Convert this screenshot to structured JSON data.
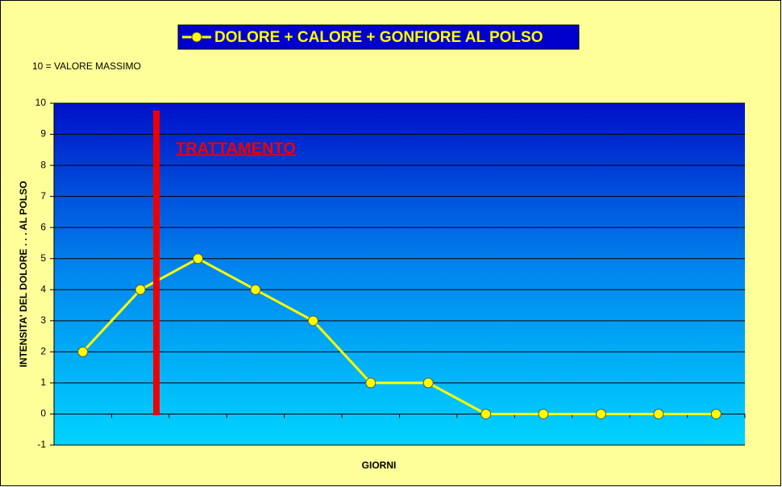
{
  "chart_data": {
    "type": "line",
    "annotations": [
      "10 = VALORE MASSIMO",
      "TRATTAMENTO"
    ],
    "x_label": "GIORNI",
    "y_label": "INTENSITA' DEL DOLORE . . . AL POLSO",
    "categories": [
      null,
      null,
      null,
      null,
      null,
      null,
      null,
      null,
      null,
      null,
      null,
      null
    ],
    "series": [
      {
        "name": "DOLORE + CALORE + GONFIORE AL POLSO",
        "color": "#ffff00",
        "values": [
          2,
          4,
          5,
          4,
          3,
          1,
          1,
          0,
          0,
          0,
          0,
          0
        ]
      }
    ],
    "ylim": [
      -1,
      10
    ],
    "yticks": [
      -1,
      0,
      1,
      2,
      3,
      4,
      5,
      6,
      7,
      8,
      9,
      10
    ],
    "grid": true,
    "legend": "top"
  }
}
